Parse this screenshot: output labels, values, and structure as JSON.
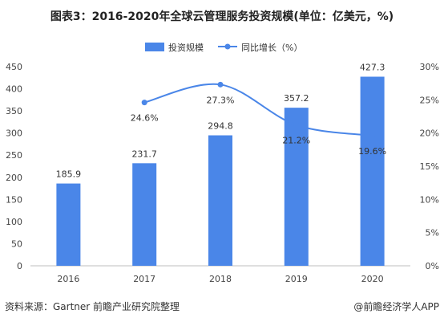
{
  "title": "图表3：2016-2020年全球云管理服务投资规模(单位：亿美元，%)",
  "source": "资料来源：Gartner 前瞻产业研究院整理",
  "credit": "@前瞻经济学人APP",
  "colors": {
    "bar": "#4a86e8",
    "line": "#4a86e8"
  },
  "chart_data": {
    "type": "bar",
    "categories": [
      "2016",
      "2017",
      "2018",
      "2019",
      "2020"
    ],
    "series": [
      {
        "name": "投资规模",
        "type": "bar",
        "axis": "left",
        "values": [
          185.9,
          231.7,
          294.8,
          357.2,
          427.3
        ],
        "labels": [
          "185.9",
          "231.7",
          "294.8",
          "357.2",
          "427.3"
        ]
      },
      {
        "name": "同比增长（%）",
        "type": "line",
        "axis": "right",
        "values": [
          null,
          24.6,
          27.3,
          21.2,
          19.6
        ],
        "labels": [
          "",
          "24.6%",
          "27.3%",
          "21.2%",
          "19.6%"
        ]
      }
    ],
    "y_left": {
      "min": 0,
      "max": 450,
      "step": 50,
      "ticks": [
        "0",
        "50",
        "100",
        "150",
        "200",
        "250",
        "300",
        "350",
        "400",
        "450"
      ]
    },
    "y_right": {
      "min": 0,
      "max": 30,
      "step": 5,
      "ticks": [
        "0%",
        "5%",
        "10%",
        "15%",
        "20%",
        "25%",
        "30%"
      ]
    },
    "legend_position": "top",
    "grid": false
  }
}
